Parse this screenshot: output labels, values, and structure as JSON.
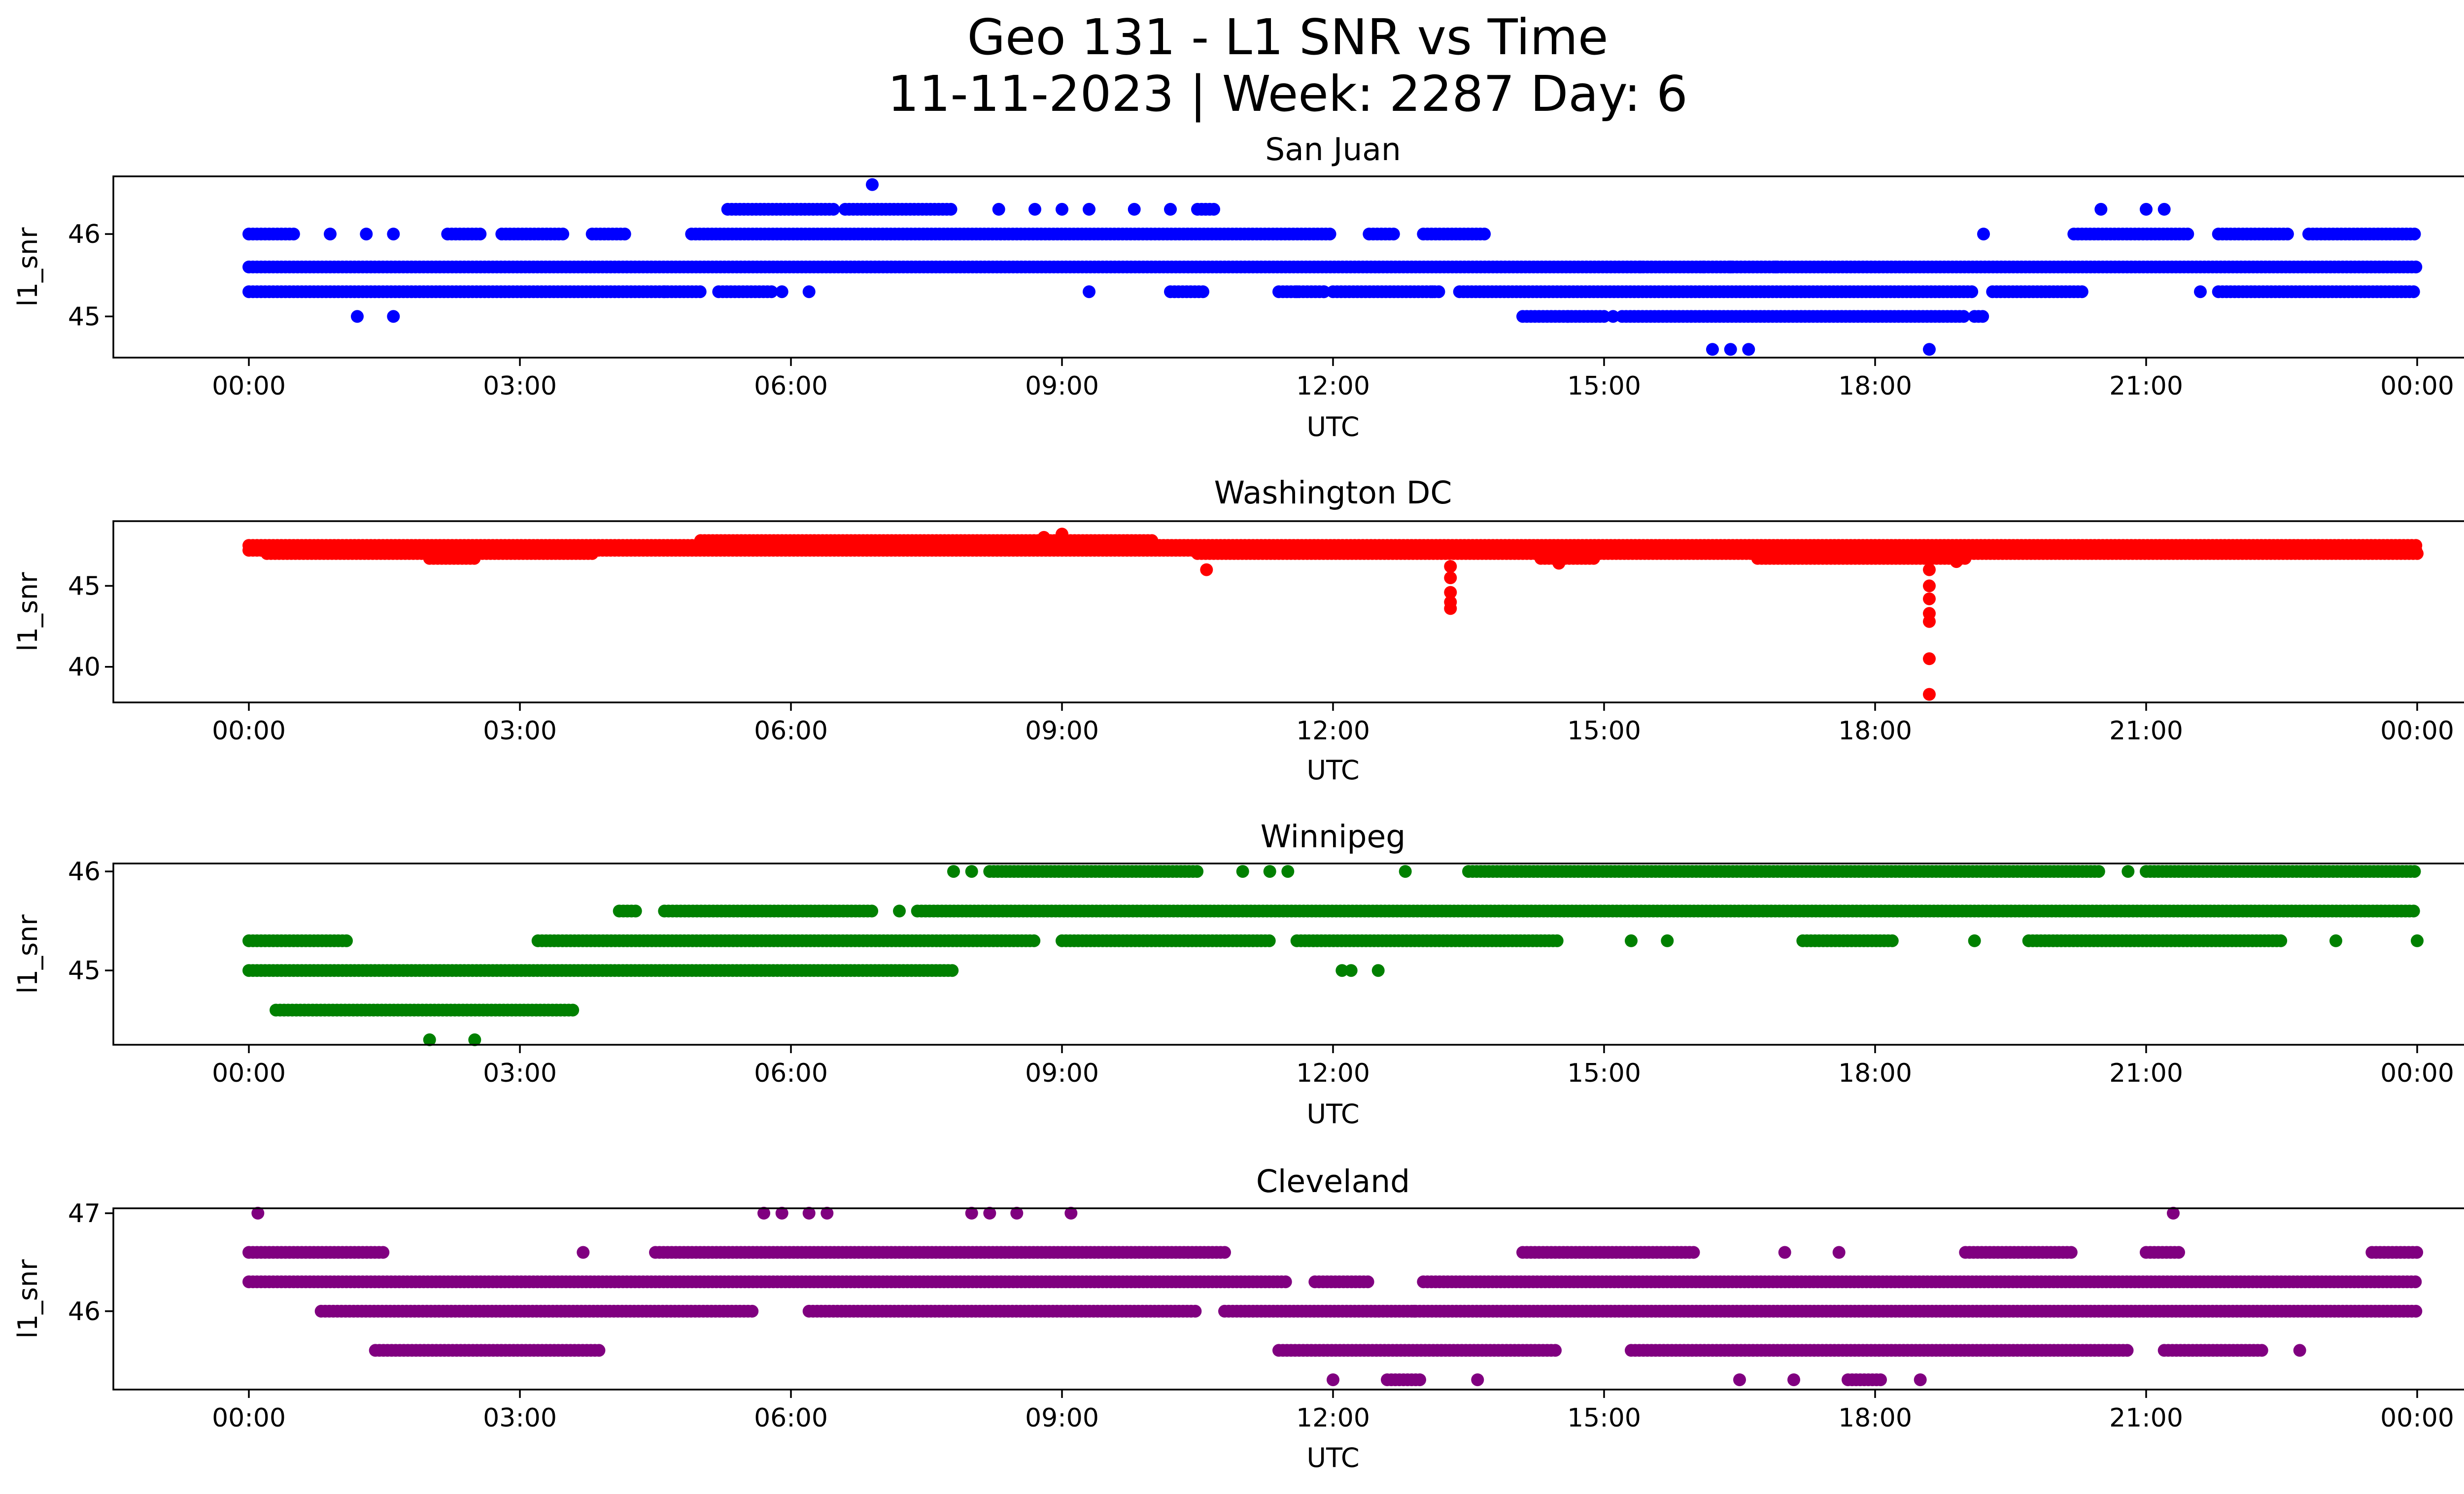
{
  "figure": {
    "title_line1": "Geo 131 - L1 SNR vs Time",
    "title_line2": "11-11-2023 | Week: 2287 Day: 6"
  },
  "chart_data": [
    {
      "type": "scatter",
      "title": "San Juan",
      "xlabel": "UTC",
      "ylabel": "l1_snr",
      "color": "#0000ff",
      "x_unit": "hours UTC",
      "xlim": [
        -1.5,
        25.5
      ],
      "ylim": [
        44.5,
        46.7
      ],
      "yticks": [
        45,
        46
      ],
      "xtick_labels": [
        "00:00",
        "03:00",
        "06:00",
        "09:00",
        "12:00",
        "15:00",
        "18:00",
        "21:00",
        "00:00"
      ],
      "bands": [
        {
          "y": 45.6,
          "ranges": [
            [
              0.0,
              24.0
            ]
          ]
        },
        {
          "y": 45.3,
          "ranges": [
            [
              0.0,
              5.0
            ],
            [
              5.2,
              5.8
            ],
            [
              10.2,
              10.6
            ],
            [
              11.4,
              11.9
            ],
            [
              12.0,
              13.2
            ],
            [
              13.4,
              19.1
            ],
            [
              19.3,
              20.3
            ],
            [
              21.8,
              24.0
            ]
          ]
        },
        {
          "y": 46.0,
          "ranges": [
            [
              0.0,
              0.5
            ],
            [
              2.2,
              2.6
            ],
            [
              2.8,
              3.5
            ],
            [
              3.8,
              4.2
            ],
            [
              4.9,
              12.0
            ],
            [
              12.4,
              12.7
            ],
            [
              13.0,
              13.7
            ],
            [
              20.2,
              21.5
            ],
            [
              21.8,
              22.6
            ],
            [
              22.8,
              24.0
            ]
          ]
        },
        {
          "y": 46.3,
          "ranges": [
            [
              5.3,
              6.5
            ],
            [
              6.6,
              7.8
            ],
            [
              10.5,
              10.7
            ]
          ]
        },
        {
          "y": 45.0,
          "ranges": [
            [
              14.1,
              15.0
            ],
            [
              15.2,
              19.0
            ],
            [
              19.1,
              19.2
            ]
          ]
        }
      ],
      "points": [
        [
          0.9,
          46.0
        ],
        [
          1.6,
          46.0
        ],
        [
          1.3,
          46.0
        ],
        [
          1.2,
          45.0
        ],
        [
          1.6,
          45.0
        ],
        [
          4.6,
          45.3
        ],
        [
          5.9,
          45.3
        ],
        [
          6.2,
          45.3
        ],
        [
          6.9,
          46.6
        ],
        [
          8.3,
          46.3
        ],
        [
          8.7,
          46.3
        ],
        [
          9.0,
          46.3
        ],
        [
          9.3,
          46.3
        ],
        [
          9.3,
          45.3
        ],
        [
          9.8,
          46.3
        ],
        [
          10.2,
          46.3
        ],
        [
          11.6,
          45.3
        ],
        [
          11.9,
          45.3
        ],
        [
          13.1,
          45.3
        ],
        [
          14.6,
          45.0
        ],
        [
          15.1,
          45.0
        ],
        [
          15.4,
          45.6
        ],
        [
          16.1,
          45.6
        ],
        [
          16.4,
          45.6
        ],
        [
          16.9,
          45.6
        ],
        [
          16.2,
          44.6
        ],
        [
          16.4,
          44.6
        ],
        [
          16.6,
          44.6
        ],
        [
          18.6,
          44.6
        ],
        [
          19.2,
          46.0
        ],
        [
          20.5,
          46.3
        ],
        [
          21.0,
          46.3
        ],
        [
          21.2,
          46.3
        ],
        [
          21.6,
          45.3
        ]
      ]
    },
    {
      "type": "scatter",
      "title": "Washington DC",
      "xlabel": "UTC",
      "ylabel": "l1_snr",
      "color": "#ff0000",
      "x_unit": "hours UTC",
      "xlim": [
        -1.5,
        25.5
      ],
      "ylim": [
        37.8,
        49.0
      ],
      "yticks": [
        40,
        45
      ],
      "xtick_labels": [
        "00:00",
        "03:00",
        "06:00",
        "09:00",
        "12:00",
        "15:00",
        "18:00",
        "21:00",
        "00:00"
      ],
      "bands": [
        {
          "y": 47.5,
          "ranges": [
            [
              0.0,
              24.0
            ]
          ]
        },
        {
          "y": 47.2,
          "ranges": [
            [
              0.0,
              24.0
            ]
          ]
        },
        {
          "y": 47.0,
          "ranges": [
            [
              0.2,
              3.8
            ],
            [
              10.5,
              24.0
            ]
          ]
        },
        {
          "y": 46.7,
          "ranges": [
            [
              2.0,
              2.5
            ],
            [
              14.3,
              14.9
            ],
            [
              16.7,
              19.0
            ]
          ]
        },
        {
          "y": 47.8,
          "ranges": [
            [
              5.0,
              10.0
            ]
          ]
        }
      ],
      "points": [
        [
          9.0,
          48.2
        ],
        [
          8.8,
          48.0
        ],
        [
          10.6,
          46.0
        ],
        [
          13.3,
          46.2
        ],
        [
          13.3,
          45.5
        ],
        [
          13.3,
          44.6
        ],
        [
          13.3,
          44.0
        ],
        [
          13.3,
          43.6
        ],
        [
          14.5,
          46.4
        ],
        [
          18.6,
          46.0
        ],
        [
          18.6,
          45.0
        ],
        [
          18.6,
          44.2
        ],
        [
          18.6,
          43.3
        ],
        [
          18.6,
          42.8
        ],
        [
          18.6,
          40.5
        ],
        [
          18.6,
          38.3
        ],
        [
          18.9,
          46.5
        ]
      ]
    },
    {
      "type": "scatter",
      "title": "Winnipeg",
      "xlabel": "UTC",
      "ylabel": "l1_snr",
      "color": "#008000",
      "x_unit": "hours UTC",
      "xlim": [
        -1.5,
        25.5
      ],
      "ylim": [
        44.25,
        46.08
      ],
      "yticks": [
        45,
        46
      ],
      "xtick_labels": [
        "00:00",
        "03:00",
        "06:00",
        "09:00",
        "12:00",
        "15:00",
        "18:00",
        "21:00",
        "00:00"
      ],
      "bands": [
        {
          "y": 45.0,
          "ranges": [
            [
              0.0,
              7.8
            ]
          ]
        },
        {
          "y": 45.3,
          "ranges": [
            [
              0.0,
              1.1
            ],
            [
              3.2,
              8.7
            ],
            [
              9.0,
              11.3
            ],
            [
              11.6,
              14.5
            ],
            [
              17.2,
              18.2
            ],
            [
              19.7,
              22.5
            ]
          ]
        },
        {
          "y": 44.6,
          "ranges": [
            [
              0.3,
              3.6
            ]
          ]
        },
        {
          "y": 45.6,
          "ranges": [
            [
              4.1,
              4.3
            ],
            [
              4.6,
              6.9
            ],
            [
              7.4,
              24.0
            ]
          ]
        },
        {
          "y": 46.0,
          "ranges": [
            [
              8.2,
              10.5
            ],
            [
              13.5,
              20.5
            ],
            [
              21.0,
              24.0
            ]
          ]
        }
      ],
      "points": [
        [
          2.0,
          44.3
        ],
        [
          2.5,
          44.3
        ],
        [
          7.2,
          45.6
        ],
        [
          7.8,
          46.0
        ],
        [
          8.0,
          46.0
        ],
        [
          11.0,
          46.0
        ],
        [
          11.3,
          46.0
        ],
        [
          11.5,
          46.0
        ],
        [
          12.1,
          45.0
        ],
        [
          12.2,
          45.0
        ],
        [
          12.5,
          45.0
        ],
        [
          12.8,
          46.0
        ],
        [
          15.3,
          45.3
        ],
        [
          15.7,
          45.3
        ],
        [
          19.1,
          45.3
        ],
        [
          20.8,
          46.0
        ],
        [
          23.1,
          45.3
        ],
        [
          24.0,
          45.3
        ]
      ]
    },
    {
      "type": "scatter",
      "title": "Cleveland",
      "xlabel": "UTC",
      "ylabel": "l1_snr",
      "color": "#800080",
      "x_unit": "hours UTC",
      "xlim": [
        -1.5,
        25.5
      ],
      "ylim": [
        45.2,
        47.05
      ],
      "yticks": [
        46,
        47
      ],
      "xtick_labels": [
        "00:00",
        "03:00",
        "06:00",
        "09:00",
        "12:00",
        "15:00",
        "18:00",
        "21:00",
        "00:00"
      ],
      "bands": [
        {
          "y": 46.3,
          "ranges": [
            [
              0.0,
              11.5
            ],
            [
              11.8,
              12.4
            ],
            [
              13.0,
              24.0
            ]
          ]
        },
        {
          "y": 46.0,
          "ranges": [
            [
              0.8,
              5.6
            ],
            [
              6.2,
              10.5
            ],
            [
              10.8,
              24.0
            ]
          ]
        },
        {
          "y": 46.6,
          "ranges": [
            [
              0.0,
              1.5
            ],
            [
              4.5,
              10.8
            ],
            [
              14.1,
              16.0
            ],
            [
              19.0,
              20.2
            ],
            [
              21.0,
              21.4
            ],
            [
              23.5,
              24.0
            ]
          ]
        },
        {
          "y": 45.6,
          "ranges": [
            [
              1.4,
              3.9
            ],
            [
              11.4,
              14.5
            ],
            [
              15.3,
              20.8
            ],
            [
              21.2,
              22.3
            ]
          ]
        },
        {
          "y": 45.3,
          "ranges": [
            [
              12.6,
              13.0
            ],
            [
              17.7,
              18.1
            ]
          ]
        }
      ],
      "points": [
        [
          0.1,
          47.0
        ],
        [
          5.7,
          47.0
        ],
        [
          5.9,
          47.0
        ],
        [
          6.2,
          47.0
        ],
        [
          6.4,
          47.0
        ],
        [
          8.0,
          47.0
        ],
        [
          8.2,
          47.0
        ],
        [
          8.5,
          47.0
        ],
        [
          9.1,
          47.0
        ],
        [
          21.3,
          47.0
        ],
        [
          3.7,
          46.6
        ],
        [
          12.0,
          45.3
        ],
        [
          13.6,
          45.3
        ],
        [
          12.9,
          46.0
        ],
        [
          16.5,
          45.3
        ],
        [
          17.1,
          45.3
        ],
        [
          18.5,
          45.3
        ],
        [
          17.0,
          46.6
        ],
        [
          17.6,
          46.6
        ],
        [
          22.7,
          45.6
        ]
      ]
    }
  ]
}
